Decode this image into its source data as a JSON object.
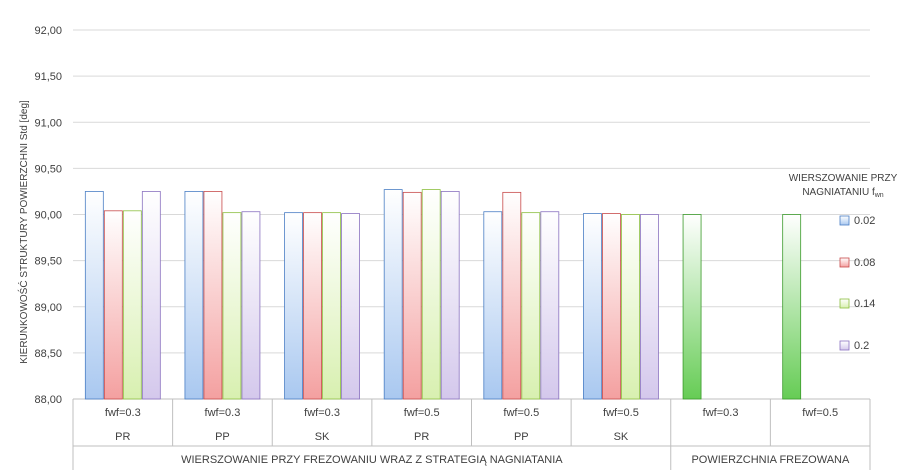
{
  "chart_data": {
    "type": "bar",
    "ylabel": "KIERUNKOWOŚĆ STRUKTURY  POWIERZCHNI Std [deg]",
    "ylim": [
      88.0,
      92.0
    ],
    "ytick_step": 0.5,
    "yticks": [
      "88,00",
      "88,50",
      "89,00",
      "89,50",
      "90,00",
      "90,50",
      "91,00",
      "91,50",
      "92,00"
    ],
    "grid": true,
    "groups": [
      {
        "fwf": "fwf=0.3",
        "strategy": "PR"
      },
      {
        "fwf": "fwf=0.3",
        "strategy": "PP"
      },
      {
        "fwf": "fwf=0.3",
        "strategy": "SK"
      },
      {
        "fwf": "fwf=0.5",
        "strategy": "PR"
      },
      {
        "fwf": "fwf=0.5",
        "strategy": "PP"
      },
      {
        "fwf": "fwf=0.5",
        "strategy": "SK"
      },
      {
        "fwf": "fwf=0.3",
        "strategy": ""
      },
      {
        "fwf": "fwf=0.5",
        "strategy": ""
      }
    ],
    "supergroups": [
      {
        "label": "WIERSZOWANIE PRZY FREZOWANIU WRAZ Z STRATEGIĄ NAGNIATANIA",
        "span": 6
      },
      {
        "label": "POWIERZCHNIA FREZOWANA",
        "span": 2
      }
    ],
    "series": [
      {
        "name": "0.02",
        "color": "#a9c8f0",
        "values": [
          90.25,
          90.25,
          90.02,
          90.27,
          90.03,
          90.01,
          null,
          null
        ]
      },
      {
        "name": "0.08",
        "color": "#f4a0a0",
        "values": [
          90.04,
          90.25,
          90.02,
          90.24,
          90.24,
          90.01,
          null,
          null
        ]
      },
      {
        "name": "0.14",
        "color": "#d8f0b0",
        "values": [
          90.04,
          90.02,
          90.02,
          90.27,
          90.02,
          90.0,
          null,
          null
        ]
      },
      {
        "name": "0.2",
        "color": "#d4c8ec",
        "values": [
          90.25,
          90.03,
          90.01,
          90.25,
          90.03,
          90.0,
          null,
          null
        ]
      }
    ],
    "milled_series": {
      "color": "#66cc55",
      "values": [
        90.0,
        90.0
      ]
    },
    "legend": {
      "title_line1": "WIERSZOWANIE PRZY",
      "title_line2": "NAGNIATANIU f",
      "title_sub": "wn",
      "placement": "right"
    }
  }
}
